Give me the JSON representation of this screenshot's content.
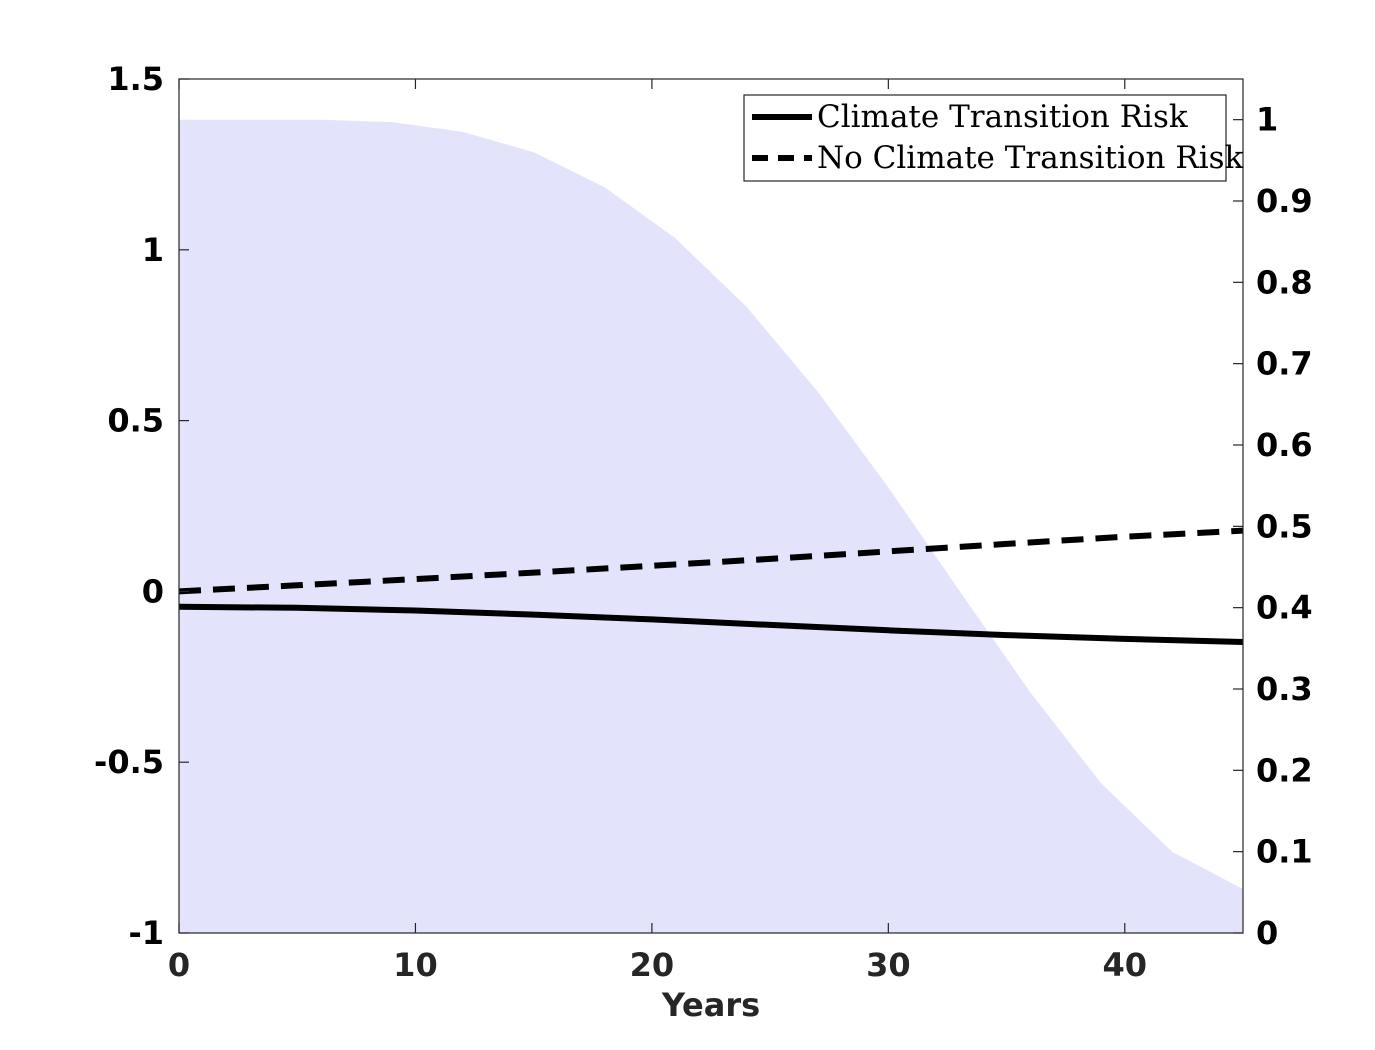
{
  "chart_data": {
    "type": "line",
    "title": "",
    "xlabel": "Years",
    "ylabel": "",
    "ylabel_right": "",
    "xlim": [
      0,
      45
    ],
    "ylim": [
      -1,
      1.5
    ],
    "ylim_right": [
      0,
      1.05
    ],
    "x_ticks": [
      0,
      10,
      20,
      30,
      40
    ],
    "y_ticks": [
      -1,
      -0.5,
      0,
      0.5,
      1,
      1.5
    ],
    "y_right_ticks": [
      0,
      0.1,
      0.2,
      0.3,
      0.4,
      0.5,
      0.6,
      0.7,
      0.8,
      0.9,
      1
    ],
    "x_tick_labels": [
      "0",
      "10",
      "20",
      "30",
      "40"
    ],
    "y_tick_labels": [
      "-1",
      "-0.5",
      "0",
      "0.5",
      "1",
      "1.5"
    ],
    "y_right_tick_labels": [
      "0",
      "0.1",
      "0.2",
      "0.3",
      "0.4",
      "0.5",
      "0.6",
      "0.7",
      "0.8",
      "0.9",
      "1"
    ],
    "grid": false,
    "legend_position": "top-right",
    "series": [
      {
        "name": "Climate Transition Risk",
        "axis": "left",
        "style": "solid",
        "color": "#000000",
        "x": [
          0,
          5,
          10,
          15,
          20,
          25,
          30,
          35,
          40,
          45
        ],
        "y": [
          -0.045,
          -0.048,
          -0.056,
          -0.068,
          -0.082,
          -0.098,
          -0.114,
          -0.128,
          -0.139,
          -0.148
        ]
      },
      {
        "name": "No Climate Transition Risk",
        "axis": "left",
        "style": "dashed",
        "color": "#000000",
        "x": [
          0,
          5,
          10,
          15,
          20,
          25,
          30,
          35,
          40,
          45
        ],
        "y": [
          0.0,
          0.018,
          0.036,
          0.055,
          0.075,
          0.095,
          0.117,
          0.139,
          0.16,
          0.178
        ]
      },
      {
        "axis": "right",
        "style": "area",
        "color": "#e3e3fc",
        "x": [
          0,
          3,
          6,
          9,
          12,
          15,
          18,
          21,
          24,
          27,
          30,
          33,
          36,
          39,
          42,
          45
        ],
        "y": [
          1.0,
          1.0,
          1.0,
          0.997,
          0.985,
          0.96,
          0.917,
          0.854,
          0.77,
          0.666,
          0.548,
          0.421,
          0.296,
          0.184,
          0.1,
          0.054
        ]
      }
    ]
  }
}
